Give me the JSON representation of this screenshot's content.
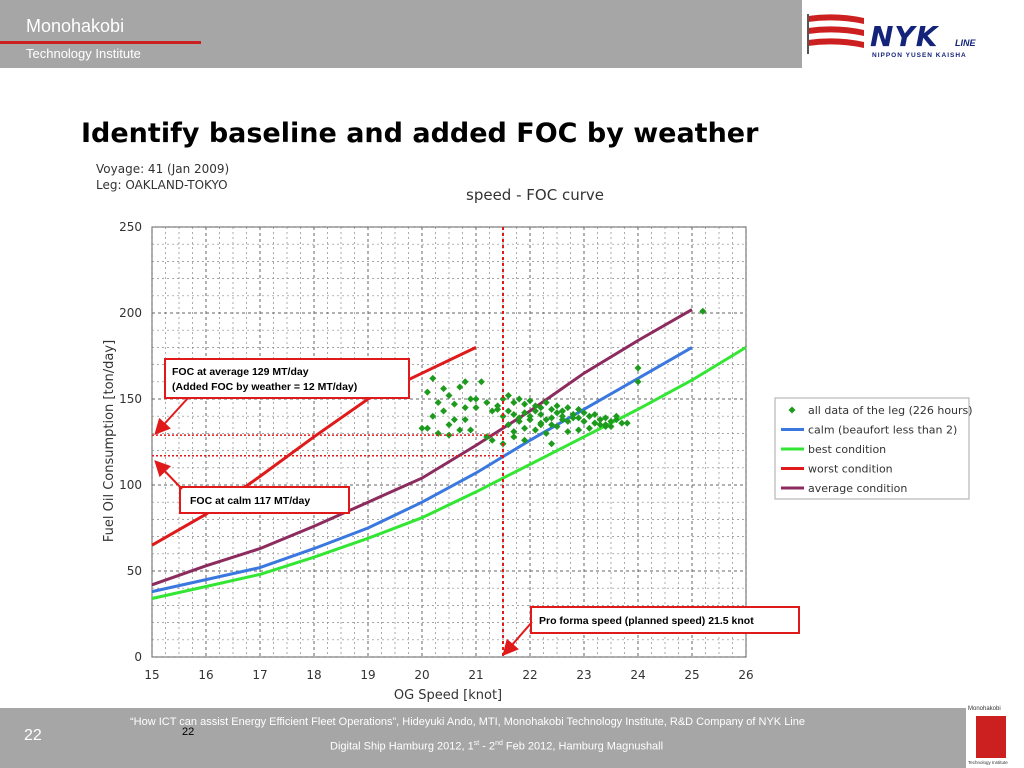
{
  "header": {
    "brand": "Monohakobi",
    "brand_sub": "Technology Institute",
    "logo_name": "NYK",
    "logo_small": "LINE",
    "logo_sub": "NIPPON YUSEN KAISHA"
  },
  "slide": {
    "title": "Identify baseline and added FOC by weather",
    "voyage_line": "Voyage:  41 (Jan 2009)",
    "leg_line": "Leg: OAKLAND-TOKYO",
    "callout_average_1": "FOC at average 129 MT/day",
    "callout_average_2": "(Added FOC by weather = 12 MT/day)",
    "callout_calm": "FOC at calm 117 MT/day",
    "callout_proforma": "Pro forma speed (planned speed) 21.5 knot"
  },
  "footer": {
    "slide_number": "22",
    "slide_number_small": "22",
    "line1": "“How ICT can assist Energy Efficient Fleet Operations”, Hideyuki Ando, MTI, Monohakobi Technology Institute, R&D Company of NYK Line",
    "line2_prefix": "Digital Ship Hamburg 2012,  1",
    "line2_sup1": "st",
    "line2_mid": "  - 2",
    "line2_sup2": "nd",
    "line2_suffix": " Feb 2012, Hamburg Magnushall",
    "mini_logo_text": "Monohakobi",
    "mini_logo_sub": "Technology Institute"
  },
  "chart_data": {
    "type": "line",
    "title": "speed - FOC curve",
    "xlabel": "OG Speed [knot]",
    "ylabel": "Fuel Oil Consumption [ton/day]",
    "xlim": [
      15,
      26
    ],
    "ylim": [
      0,
      250
    ],
    "xticks": [
      15,
      16,
      17,
      18,
      19,
      20,
      21,
      22,
      23,
      24,
      25,
      26
    ],
    "yticks": [
      0,
      50,
      100,
      150,
      200,
      250
    ],
    "grid": true,
    "legend_position": "right",
    "series": [
      {
        "name": "calm (beaufort less than 2)",
        "color": "#3a78e0",
        "x": [
          15,
          16,
          17,
          18,
          19,
          20,
          21,
          22,
          23,
          24,
          25
        ],
        "y": [
          38,
          45,
          52,
          63,
          75,
          90,
          107,
          126,
          144,
          162,
          180
        ]
      },
      {
        "name": "best condition",
        "color": "#33e633",
        "x": [
          15,
          16,
          17,
          18,
          19,
          20,
          21,
          22,
          23,
          24,
          25,
          26
        ],
        "y": [
          34,
          41,
          48,
          58,
          69,
          81,
          96,
          112,
          128,
          144,
          161,
          180
        ]
      },
      {
        "name": "worst condition",
        "color": "#e01a1a",
        "x": [
          15,
          16,
          17,
          18,
          19,
          20,
          21
        ],
        "y": [
          65,
          83,
          105,
          128,
          150,
          165,
          180
        ]
      },
      {
        "name": "average condition",
        "color": "#8c2b5e",
        "x": [
          15,
          16,
          17,
          18,
          19,
          20,
          21,
          22,
          23,
          24,
          25
        ],
        "y": [
          42,
          53,
          63,
          76,
          90,
          104,
          123,
          143,
          165,
          184,
          202
        ]
      }
    ],
    "scatter": {
      "name": "all data of the leg (226 hours)",
      "color": "#1e9b1e",
      "x": [
        20.8,
        20.9,
        21.0,
        21.1,
        21.2,
        21.3,
        21.4,
        21.5,
        21.6,
        21.7,
        21.8,
        21.9,
        22.0,
        22.1,
        22.2,
        22.3,
        22.4,
        22.5,
        22.6,
        22.7,
        22.8,
        22.9,
        23.0,
        23.1,
        23.2,
        23.3,
        23.4,
        23.5,
        23.6,
        23.7,
        21.5,
        21.6,
        21.7,
        21.8,
        21.9,
        22.0,
        22.1,
        22.2,
        22.3,
        22.4,
        22.5,
        22.6,
        22.7,
        22.8,
        22.9,
        23.0,
        23.1,
        23.2,
        23.3,
        23.4,
        21.6,
        21.8,
        22.0,
        22.2,
        22.4,
        22.6,
        22.8,
        23.0,
        23.2,
        23.4,
        21.7,
        21.9,
        22.1,
        22.3,
        22.5,
        22.7,
        22.9,
        23.1,
        23.3,
        23.5,
        20.1,
        20.2,
        20.3,
        20.4,
        20.5,
        20.6,
        20.7,
        20.8,
        20.2,
        20.4,
        20.6,
        20.8,
        21.0,
        20.3,
        20.5,
        20.7,
        20.0,
        20.1,
        20.5,
        20.9,
        21.2,
        21.4,
        21.3,
        21.5,
        21.7,
        21.9,
        22.4,
        24.0,
        24.0,
        25.2,
        22.0,
        22.2,
        22.6,
        23.6,
        23.8
      ],
      "y": [
        138,
        150,
        145,
        160,
        148,
        143,
        146,
        150,
        152,
        148,
        150,
        147,
        149,
        146,
        145,
        148,
        144,
        146,
        143,
        145,
        141,
        144,
        142,
        140,
        141,
        138,
        139,
        137,
        138,
        136,
        140,
        143,
        141,
        139,
        142,
        140,
        143,
        141,
        138,
        139,
        142,
        140,
        137,
        141,
        139,
        137,
        140,
        136,
        138,
        135,
        135,
        137,
        138,
        136,
        135,
        138,
        139,
        137,
        136,
        134,
        131,
        133,
        132,
        130,
        134,
        131,
        132,
        133,
        135,
        134,
        154,
        162,
        148,
        156,
        152,
        147,
        157,
        160,
        140,
        143,
        138,
        145,
        150,
        130,
        135,
        132,
        133,
        133,
        129,
        132,
        128,
        144,
        126,
        124,
        128,
        126,
        124,
        168,
        160,
        201,
        138,
        135,
        143,
        140,
        136
      ]
    },
    "annotations": [
      {
        "type": "hline",
        "y": 129,
        "color": "#e01a1a",
        "style": "dotted"
      },
      {
        "type": "hline",
        "y": 117,
        "color": "#e01a1a",
        "style": "dotted"
      },
      {
        "type": "vline",
        "x": 21.5,
        "color": "#e01a1a",
        "style": "dotted"
      }
    ]
  }
}
